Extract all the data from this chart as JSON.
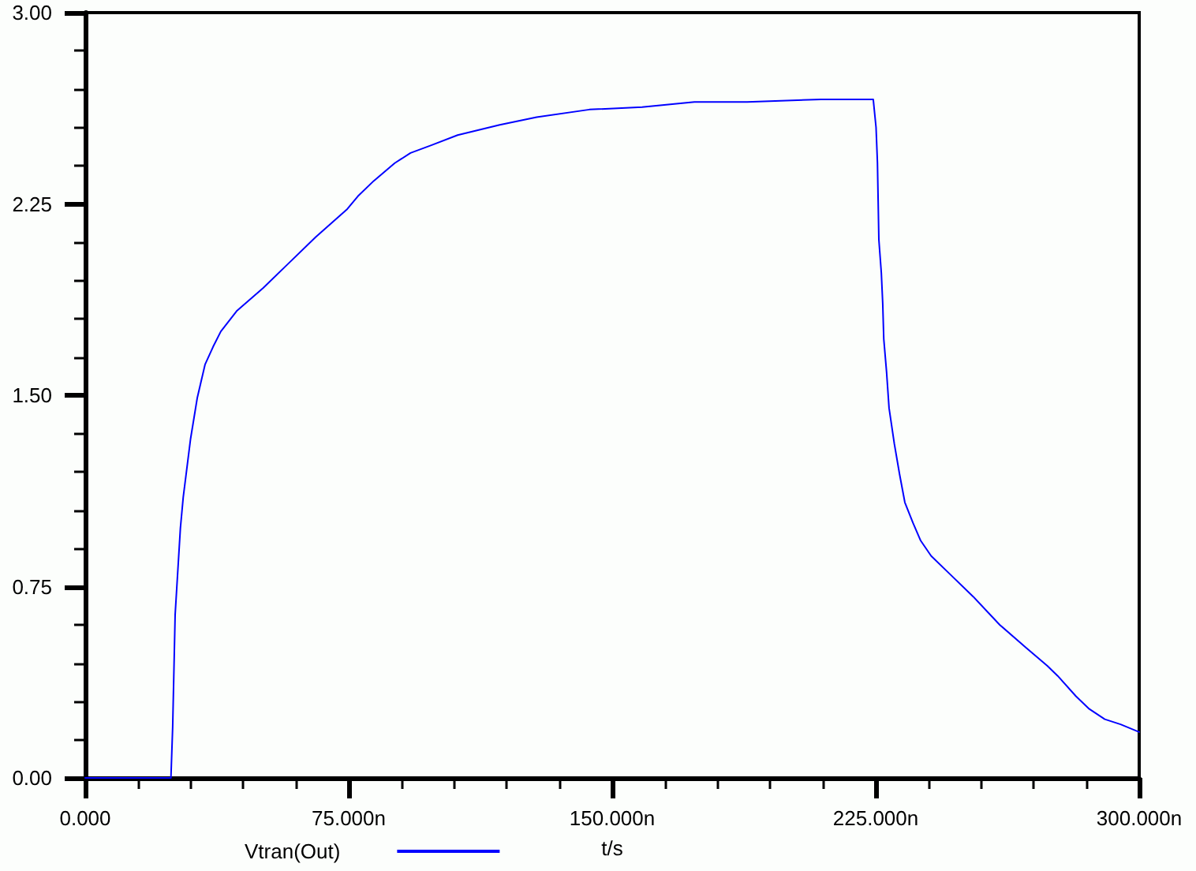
{
  "chart_data": {
    "type": "line",
    "xlabel": "t/s",
    "x": [
      0,
      24.4,
      24.9,
      25.6,
      27.1,
      27.9,
      30,
      31.9,
      34.1,
      36.4,
      38.6,
      43.1,
      50.6,
      58.1,
      65.6,
      74.6,
      77.6,
      82.1,
      88.1,
      92.6,
      98.5,
      106,
      118,
      128.5,
      143.5,
      158.5,
      173.4,
      188.4,
      209.4,
      224.3,
      225.1,
      225.5,
      225.9,
      226.6,
      227,
      227.3,
      228.1,
      228.8,
      230.3,
      231.8,
      233.3,
      235.6,
      237.8,
      240.8,
      245.3,
      252.8,
      260.3,
      267.8,
      273.8,
      276.8,
      282,
      285.8,
      290.2,
      294.7,
      300
    ],
    "series": [
      {
        "name": "Vtran(Out)",
        "color": "#0000ff",
        "values": [
          0,
          0,
          0.2,
          0.64,
          0.98,
          1.1,
          1.33,
          1.49,
          1.62,
          1.69,
          1.75,
          1.83,
          1.92,
          2.02,
          2.12,
          2.23,
          2.28,
          2.34,
          2.41,
          2.45,
          2.48,
          2.52,
          2.56,
          2.59,
          2.62,
          2.63,
          2.65,
          2.65,
          2.66,
          2.66,
          2.55,
          2.41,
          2.11,
          1.98,
          1.86,
          1.72,
          1.59,
          1.45,
          1.31,
          1.19,
          1.08,
          1.0,
          0.93,
          0.87,
          0.81,
          0.71,
          0.6,
          0.51,
          0.44,
          0.4,
          0.32,
          0.27,
          0.23,
          0.21,
          0.18
        ]
      }
    ],
    "xlim": [
      0,
      300
    ],
    "xticks": [
      {
        "value": 0,
        "label": "0.000"
      },
      {
        "value": 15,
        "label": null
      },
      {
        "value": 30,
        "label": null
      },
      {
        "value": 45,
        "label": null
      },
      {
        "value": 60,
        "label": null
      },
      {
        "value": 75,
        "label": "75.000n"
      },
      {
        "value": 90,
        "label": null
      },
      {
        "value": 105,
        "label": null
      },
      {
        "value": 120,
        "label": null
      },
      {
        "value": 135,
        "label": null
      },
      {
        "value": 150,
        "label": "150.000n"
      },
      {
        "value": 165,
        "label": null
      },
      {
        "value": 180,
        "label": null
      },
      {
        "value": 195,
        "label": null
      },
      {
        "value": 210,
        "label": null
      },
      {
        "value": 225,
        "label": "225.000n"
      },
      {
        "value": 240,
        "label": null
      },
      {
        "value": 255,
        "label": null
      },
      {
        "value": 270,
        "label": null
      },
      {
        "value": 285,
        "label": null
      },
      {
        "value": 300,
        "label": "300.000n"
      }
    ],
    "ylim": [
      0,
      3
    ],
    "yticks": [
      {
        "value": 0,
        "label": "0.00"
      },
      {
        "value": 0.15,
        "label": null
      },
      {
        "value": 0.3,
        "label": null
      },
      {
        "value": 0.45,
        "label": null
      },
      {
        "value": 0.6,
        "label": null
      },
      {
        "value": 0.75,
        "label": "0.75"
      },
      {
        "value": 0.9,
        "label": null
      },
      {
        "value": 1.05,
        "label": null
      },
      {
        "value": 1.2,
        "label": null
      },
      {
        "value": 1.35,
        "label": null
      },
      {
        "value": 1.5,
        "label": "1.50"
      },
      {
        "value": 1.65,
        "label": null
      },
      {
        "value": 1.8,
        "label": null
      },
      {
        "value": 1.95,
        "label": null
      },
      {
        "value": 2.1,
        "label": null
      },
      {
        "value": 2.25,
        "label": "2.25"
      },
      {
        "value": 2.4,
        "label": null
      },
      {
        "value": 2.55,
        "label": null
      },
      {
        "value": 2.7,
        "label": null
      },
      {
        "value": 2.85,
        "label": null
      },
      {
        "value": 3,
        "label": "3.00"
      }
    ],
    "grid": false,
    "legend": "bottom"
  }
}
